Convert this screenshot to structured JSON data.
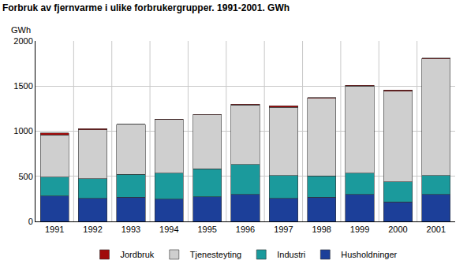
{
  "chart_data": {
    "type": "bar",
    "stacked": true,
    "title": "Forbruk av fjernvarme i ulike forbrukergrupper. 1991-2001. GWh",
    "ylabel": "GWh",
    "categories": [
      "1991",
      "1992",
      "1993",
      "1994",
      "1995",
      "1996",
      "1997",
      "1998",
      "1999",
      "2000",
      "2001"
    ],
    "series": [
      {
        "name": "Husholdninger",
        "color": "#1c3f99",
        "values": [
          280,
          255,
          270,
          245,
          275,
          300,
          255,
          270,
          300,
          215,
          300
        ]
      },
      {
        "name": "Industri",
        "color": "#1b9a9c",
        "values": [
          210,
          220,
          250,
          290,
          310,
          330,
          255,
          235,
          235,
          225,
          210
        ]
      },
      {
        "name": "Tjenesteyting",
        "color": "#cfcfcf",
        "values": [
          470,
          540,
          555,
          595,
          595,
          660,
          755,
          860,
          965,
          1005,
          1290
        ]
      },
      {
        "name": "Jordbruk",
        "color": "#a00a0a",
        "values": [
          20,
          15,
          3,
          3,
          5,
          10,
          15,
          10,
          8,
          12,
          10
        ]
      }
    ],
    "ylim": [
      0,
      2000
    ],
    "yticks": [
      0,
      500,
      1000,
      1500,
      2000
    ],
    "grid": true,
    "legend": "bottom"
  }
}
